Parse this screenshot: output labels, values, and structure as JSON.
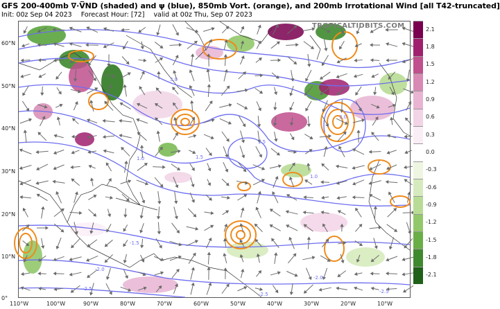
{
  "header": {
    "title": "GFS 200-400mb ∇·V̅ND (shaded) and ψ (blue), 850mb Vort. (orange), and 200mb Irrotational Wind [all T42-truncated]",
    "init": "Init: 00z Sep 04 2023",
    "forecast_hour": "Forecast Hour: [72]",
    "valid": "valid at 00z Thu, Sep 07 2023"
  },
  "watermark": "TROPICALTIDBITS.COM",
  "axes": {
    "lat_labels": [
      "60°N",
      "50°N",
      "40°N",
      "30°N",
      "20°N",
      "10°N",
      "0°"
    ],
    "lon_labels": [
      "110°W",
      "100°W",
      "90°W",
      "80°W",
      "70°W",
      "60°W",
      "50°W",
      "40°W",
      "30°W",
      "20°W",
      "10°W"
    ]
  },
  "colorbar": {
    "labels": [
      "2.1",
      "1.8",
      "1.5",
      "1.2",
      "0.9",
      "0.6",
      "0.3",
      "0.0",
      "-0.3",
      "-0.6",
      "-0.9",
      "-1.2",
      "-1.5",
      "-1.8",
      "-2.1"
    ],
    "colors": [
      "#7a0050",
      "#a0206e",
      "#c0508e",
      "#d88ab4",
      "#e8b4d2",
      "#f2d4e6",
      "#faeef6",
      "#ffffff",
      "#eef6e2",
      "#d6ebbd",
      "#b8dc95",
      "#92c86a",
      "#6aae48",
      "#3f8a2e",
      "#1f6118"
    ]
  },
  "contour_labels": [
    "3.0",
    "3.0",
    "1.5",
    "1.0",
    "1.5",
    "1.0",
    "-1.5",
    "-2.0",
    "-2.0",
    "-2.5",
    "-2.5",
    "-2.5"
  ],
  "colors": {
    "streamfunction": "#6d6df0",
    "vorticity": "#ef8a1a",
    "wind_arrows": "#6b6b6b",
    "coastline": "#333333"
  }
}
